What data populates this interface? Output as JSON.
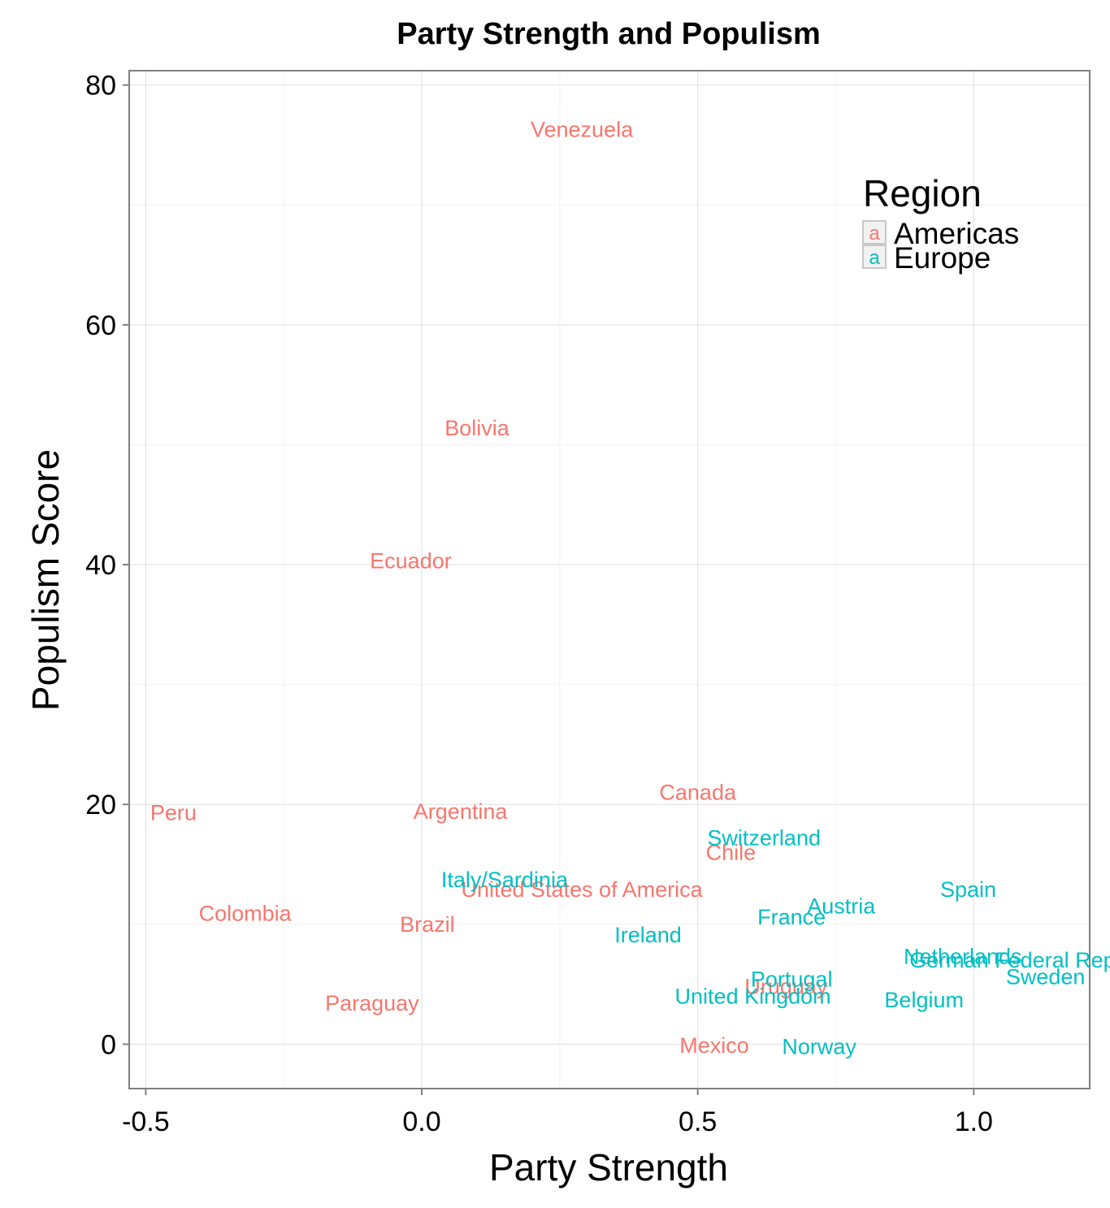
{
  "chart_data": {
    "type": "scatter",
    "title": "Party Strength and Populism",
    "xlabel": "Party Strength",
    "ylabel": "Populism Score",
    "xlim": [
      -0.53,
      1.21
    ],
    "ylim": [
      -3.7,
      81.2
    ],
    "x_ticks": [
      -0.5,
      0.0,
      0.5,
      1.0
    ],
    "x_tick_labels": [
      "-0.5",
      "0.0",
      "0.5",
      "1.0"
    ],
    "y_ticks": [
      0,
      20,
      40,
      60,
      80
    ],
    "y_tick_labels": [
      "0",
      "20",
      "40",
      "60",
      "80"
    ],
    "grid": true,
    "legend": {
      "title": "Region",
      "position": "top-right",
      "key_glyph": "a",
      "entries": [
        {
          "label": "Americas",
          "color": "#F8766D"
        },
        {
          "label": "Europe",
          "color": "#00BFC4"
        }
      ]
    },
    "series": [
      {
        "name": "Americas",
        "color": "#F8766D",
        "points": [
          {
            "label": "Venezuela",
            "x": 0.29,
            "y": 76.3
          },
          {
            "label": "Bolivia",
            "x": 0.1,
            "y": 51.4
          },
          {
            "label": "Ecuador",
            "x": -0.02,
            "y": 40.3
          },
          {
            "label": "Canada",
            "x": 0.5,
            "y": 21.0
          },
          {
            "label": "Peru",
            "x": -0.45,
            "y": 19.3
          },
          {
            "label": "Argentina",
            "x": 0.07,
            "y": 19.4
          },
          {
            "label": "Chile",
            "x": 0.56,
            "y": 16.0
          },
          {
            "label": "United States of America",
            "x": 0.29,
            "y": 12.9
          },
          {
            "label": "Colombia",
            "x": -0.32,
            "y": 10.9
          },
          {
            "label": "Brazil",
            "x": 0.01,
            "y": 10.0
          },
          {
            "label": "Uruguay",
            "x": 0.66,
            "y": 4.8
          },
          {
            "label": "Paraguay",
            "x": -0.09,
            "y": 3.4
          },
          {
            "label": "Mexico",
            "x": 0.53,
            "y": -0.1
          }
        ]
      },
      {
        "name": "Europe",
        "color": "#00BFC4",
        "points": [
          {
            "label": "Switzerland",
            "x": 0.62,
            "y": 17.2
          },
          {
            "label": "Italy/Sardinia",
            "x": 0.15,
            "y": 13.7
          },
          {
            "label": "Spain",
            "x": 0.99,
            "y": 12.9
          },
          {
            "label": "Austria",
            "x": 0.76,
            "y": 11.5
          },
          {
            "label": "France",
            "x": 0.67,
            "y": 10.6
          },
          {
            "label": "Ireland",
            "x": 0.41,
            "y": 9.1
          },
          {
            "label": "Netherlands",
            "x": 0.98,
            "y": 7.3
          },
          {
            "label": "German Federal Rep",
            "x": 1.07,
            "y": 7.0
          },
          {
            "label": "Sweden",
            "x": 1.13,
            "y": 5.6
          },
          {
            "label": "Portugal",
            "x": 0.67,
            "y": 5.4
          },
          {
            "label": "United Kingdom",
            "x": 0.6,
            "y": 4.0
          },
          {
            "label": "Belgium",
            "x": 0.91,
            "y": 3.7
          },
          {
            "label": "Norway",
            "x": 0.72,
            "y": -0.2
          }
        ]
      }
    ]
  }
}
